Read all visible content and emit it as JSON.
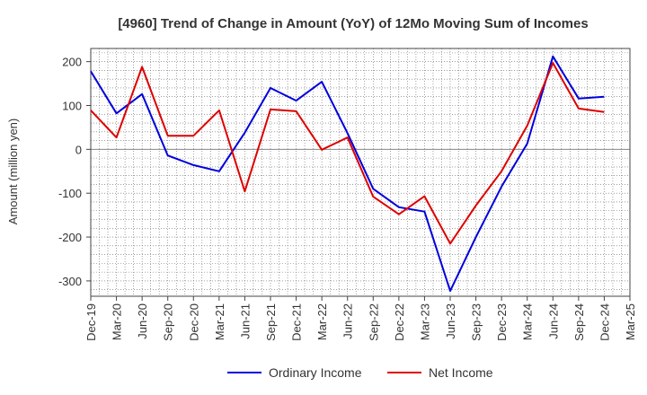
{
  "chart_data": {
    "type": "line",
    "title": "[4960]  Trend of Change in Amount (YoY) of 12Mo Moving Sum of Incomes",
    "xlabel": "",
    "ylabel": "Amount (million yen)",
    "ylim": [
      -335,
      230
    ],
    "yticks": [
      200,
      100,
      0,
      -100,
      -200,
      -300
    ],
    "grid": true,
    "legend_position": "bottom",
    "categories": [
      "Dec-19",
      "Mar-20",
      "Jun-20",
      "Sep-20",
      "Dec-20",
      "Mar-21",
      "Jun-21",
      "Sep-21",
      "Dec-21",
      "Mar-22",
      "Jun-22",
      "Sep-22",
      "Dec-22",
      "Mar-23",
      "Jun-23",
      "Sep-23",
      "Dec-23",
      "Mar-24",
      "Jun-24",
      "Sep-24",
      "Dec-24",
      "Mar-25"
    ],
    "series": [
      {
        "name": "Ordinary Income",
        "color": "#0000dd",
        "values": [
          178,
          82,
          126,
          -14,
          -36,
          -50,
          38,
          140,
          111,
          154,
          37,
          -90,
          -132,
          -142,
          -323,
          -200,
          -85,
          13,
          212,
          116,
          120,
          null
        ]
      },
      {
        "name": "Net Income",
        "color": "#dd0000",
        "values": [
          89,
          27,
          188,
          31,
          31,
          89,
          -96,
          91,
          87,
          -1,
          27,
          -108,
          -148,
          -107,
          -215,
          -128,
          -50,
          54,
          197,
          93,
          85,
          null
        ]
      }
    ]
  }
}
